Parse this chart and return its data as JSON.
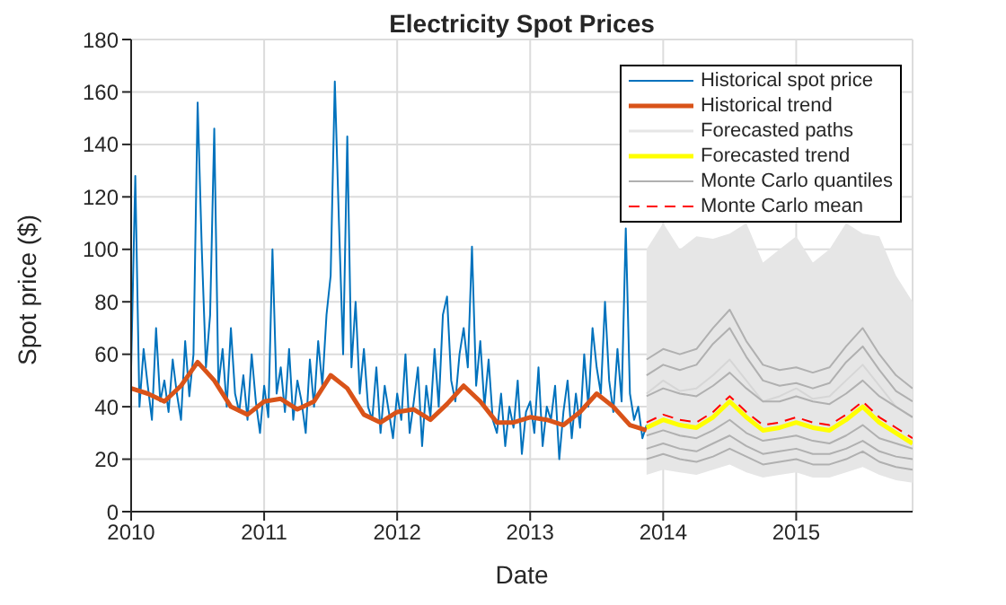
{
  "chart_data": {
    "type": "line",
    "title": "Electricity Spot Prices",
    "xlabel": "Date",
    "ylabel": "Spot price ($)",
    "xlim": [
      2010,
      2015.875
    ],
    "xticks": [
      2010,
      2011,
      2012,
      2013,
      2014,
      2015
    ],
    "ylim": [
      0,
      180
    ],
    "yticks": [
      0,
      20,
      40,
      60,
      80,
      100,
      120,
      140,
      160,
      180
    ],
    "grid": true,
    "legend": "top right",
    "marker": "none",
    "series": [
      {
        "name": "Historical spot price",
        "color": "#0072bd",
        "line_style": "solid",
        "x": [
          2010,
          2010.03125,
          2010.0625,
          2010.09375,
          2010.125,
          2010.15625,
          2010.1875,
          2010.21875,
          2010.25,
          2010.28125,
          2010.3125,
          2010.34375,
          2010.375,
          2010.40625,
          2010.4375,
          2010.46875,
          2010.5,
          2010.53125,
          2010.5625,
          2010.59375,
          2010.625,
          2010.65625,
          2010.6875,
          2010.71875,
          2010.75,
          2010.78125,
          2010.8125,
          2010.84375,
          2010.875,
          2010.90625,
          2010.9375,
          2010.96875,
          2011,
          2011.03125,
          2011.0625,
          2011.09375,
          2011.125,
          2011.15625,
          2011.1875,
          2011.21875,
          2011.25,
          2011.28125,
          2011.3125,
          2011.34375,
          2011.375,
          2011.40625,
          2011.4375,
          2011.46875,
          2011.5,
          2011.53125,
          2011.5625,
          2011.59375,
          2011.625,
          2011.65625,
          2011.6875,
          2011.71875,
          2011.75,
          2011.78125,
          2011.8125,
          2011.84375,
          2011.875,
          2011.90625,
          2011.9375,
          2011.96875,
          2012,
          2012.03125,
          2012.0625,
          2012.09375,
          2012.125,
          2012.15625,
          2012.1875,
          2012.21875,
          2012.25,
          2012.28125,
          2012.3125,
          2012.34375,
          2012.375,
          2012.40625,
          2012.4375,
          2012.46875,
          2012.5,
          2012.53125,
          2012.5625,
          2012.59375,
          2012.625,
          2012.65625,
          2012.6875,
          2012.71875,
          2012.75,
          2012.78125,
          2012.8125,
          2012.84375,
          2012.875,
          2012.90625,
          2012.9375,
          2012.96875,
          2013,
          2013.03125,
          2013.0625,
          2013.09375,
          2013.125,
          2013.15625,
          2013.1875,
          2013.21875,
          2013.25,
          2013.28125,
          2013.3125,
          2013.34375,
          2013.375,
          2013.40625,
          2013.4375,
          2013.46875,
          2013.5,
          2013.53125,
          2013.5625,
          2013.59375,
          2013.625,
          2013.65625,
          2013.6875,
          2013.71875,
          2013.75,
          2013.78125,
          2013.8125,
          2013.84375,
          2013.875
        ],
        "values": [
          55,
          128,
          40,
          62,
          48,
          35,
          70,
          42,
          50,
          38,
          58,
          45,
          35,
          65,
          44,
          60,
          156,
          100,
          55,
          75,
          146,
          48,
          62,
          40,
          70,
          45,
          38,
          52,
          35,
          60,
          42,
          30,
          48,
          36,
          100,
          45,
          55,
          38,
          62,
          35,
          50,
          42,
          30,
          58,
          40,
          65,
          48,
          75,
          90,
          164,
          110,
          60,
          143,
          55,
          80,
          45,
          62,
          40,
          35,
          55,
          30,
          48,
          38,
          28,
          45,
          35,
          60,
          30,
          42,
          55,
          25,
          48,
          36,
          62,
          40,
          75,
          82,
          50,
          42,
          60,
          70,
          55,
          101,
          48,
          65,
          40,
          58,
          35,
          30,
          45,
          25,
          40,
          32,
          50,
          22,
          38,
          42,
          30,
          55,
          25,
          40,
          35,
          48,
          20,
          38,
          50,
          28,
          45,
          32,
          60,
          40,
          70,
          55,
          45,
          80,
          50,
          38,
          62,
          42,
          108,
          45,
          35,
          40,
          28,
          33
        ]
      },
      {
        "name": "Historical trend",
        "color": "#d95319",
        "line_style": "solid",
        "x": [
          2010,
          2010.125,
          2010.25,
          2010.375,
          2010.5,
          2010.625,
          2010.75,
          2010.875,
          2011,
          2011.125,
          2011.25,
          2011.375,
          2011.5,
          2011.625,
          2011.75,
          2011.875,
          2012,
          2012.125,
          2012.25,
          2012.375,
          2012.5,
          2012.625,
          2012.75,
          2012.875,
          2013,
          2013.125,
          2013.25,
          2013.375,
          2013.5,
          2013.625,
          2013.75,
          2013.875
        ],
        "values": [
          47,
          45,
          42,
          48,
          57,
          50,
          40,
          37,
          42,
          43,
          39,
          42,
          52,
          47,
          37,
          34,
          38,
          39,
          35,
          41,
          48,
          42,
          34,
          34,
          36,
          35,
          33,
          38,
          45,
          40,
          33,
          31
        ]
      },
      {
        "name": "Forecasted paths",
        "color": "#e6e6e6",
        "x": [
          2013.875,
          2014,
          2014.125,
          2014.25,
          2014.375,
          2014.5,
          2014.625,
          2014.75,
          2014.875,
          2015,
          2015.125,
          2015.25,
          2015.375,
          2015.5,
          2015.625,
          2015.75,
          2015.875
        ],
        "lower": [
          14,
          16,
          15,
          14,
          16,
          18,
          15,
          13,
          14,
          15,
          13,
          13,
          15,
          17,
          14,
          12,
          11
        ],
        "upper": [
          100,
          110,
          100,
          105,
          104,
          106,
          110,
          95,
          100,
          105,
          95,
          100,
          110,
          106,
          105,
          90,
          80
        ],
        "values": [
          45,
          50,
          46,
          47,
          52,
          58,
          50,
          42,
          44,
          47,
          43,
          44,
          50,
          56,
          48,
          40,
          36
        ]
      },
      {
        "name": "Forecasted trend",
        "color": "#ffff00",
        "line_style": "solid",
        "x": [
          2013.875,
          2014,
          2014.125,
          2014.25,
          2014.375,
          2014.5,
          2014.625,
          2014.75,
          2014.875,
          2015,
          2015.125,
          2015.25,
          2015.375,
          2015.5,
          2015.625,
          2015.75,
          2015.875
        ],
        "values": [
          32,
          35,
          33,
          32,
          36,
          42,
          36,
          31,
          32,
          34,
          32,
          31,
          35,
          40,
          34,
          30,
          26
        ]
      },
      {
        "name": "Monte Carlo quantiles",
        "color": "#b0b0b0",
        "line_style": "solid",
        "x": [
          2013.875,
          2014,
          2014.125,
          2014.25,
          2014.375,
          2014.5,
          2014.625,
          2014.75,
          2014.875,
          2015,
          2015.125,
          2015.25,
          2015.375,
          2015.5,
          2015.625,
          2015.75,
          2015.875
        ],
        "values": [
          58,
          62,
          60,
          62,
          70,
          77,
          65,
          56,
          54,
          55,
          53,
          55,
          63,
          70,
          60,
          52,
          47
        ]
      },
      {
        "color": "#b0b0b0",
        "line_style": "solid",
        "x": [
          2013.875,
          2014,
          2014.125,
          2014.25,
          2014.375,
          2014.5,
          2014.625,
          2014.75,
          2014.875,
          2015,
          2015.125,
          2015.25,
          2015.375,
          2015.5,
          2015.625,
          2015.75,
          2015.875
        ],
        "values": [
          52,
          56,
          54,
          56,
          64,
          70,
          59,
          50,
          48,
          49,
          47,
          49,
          57,
          63,
          54,
          46,
          42
        ]
      },
      {
        "color": "#b0b0b0",
        "line_style": "solid",
        "x": [
          2013.875,
          2014,
          2014.125,
          2014.25,
          2014.375,
          2014.5,
          2014.625,
          2014.75,
          2014.875,
          2015,
          2015.125,
          2015.25,
          2015.375,
          2015.5,
          2015.625,
          2015.75,
          2015.875
        ],
        "values": [
          44,
          47,
          45,
          44,
          48,
          53,
          47,
          42,
          42,
          44,
          42,
          41,
          45,
          50,
          44,
          40,
          36
        ]
      },
      {
        "color": "#b0b0b0",
        "line_style": "solid",
        "x": [
          2013.875,
          2014,
          2014.125,
          2014.25,
          2014.375,
          2014.5,
          2014.625,
          2014.75,
          2014.875,
          2015,
          2015.125,
          2015.25,
          2015.375,
          2015.5,
          2015.625,
          2015.75,
          2015.875
        ],
        "values": [
          29,
          31,
          29,
          28,
          31,
          35,
          30,
          27,
          28,
          29,
          27,
          26,
          29,
          33,
          28,
          26,
          24
        ]
      },
      {
        "color": "#b0b0b0",
        "line_style": "solid",
        "x": [
          2013.875,
          2014,
          2014.125,
          2014.25,
          2014.375,
          2014.5,
          2014.625,
          2014.75,
          2014.875,
          2015,
          2015.125,
          2015.25,
          2015.375,
          2015.5,
          2015.625,
          2015.75,
          2015.875
        ],
        "values": [
          24,
          26,
          24,
          23,
          26,
          29,
          25,
          22,
          23,
          24,
          22,
          22,
          24,
          27,
          23,
          21,
          20
        ]
      },
      {
        "color": "#b0b0b0",
        "line_style": "solid",
        "x": [
          2013.875,
          2014,
          2014.125,
          2014.25,
          2014.375,
          2014.5,
          2014.625,
          2014.75,
          2014.875,
          2015,
          2015.125,
          2015.25,
          2015.375,
          2015.5,
          2015.625,
          2015.75,
          2015.875
        ],
        "values": [
          20,
          22,
          20,
          19,
          21,
          24,
          21,
          18,
          19,
          20,
          18,
          18,
          20,
          23,
          19,
          17,
          16
        ]
      },
      {
        "name": "Monte Carlo mean",
        "color": "#ff0000",
        "line_style": "dashed",
        "x": [
          2013.875,
          2014,
          2014.125,
          2014.25,
          2014.375,
          2014.5,
          2014.625,
          2014.75,
          2014.875,
          2015,
          2015.125,
          2015.25,
          2015.375,
          2015.5,
          2015.625,
          2015.75,
          2015.875
        ],
        "values": [
          34,
          37,
          35,
          34,
          38,
          44,
          38,
          33,
          34,
          36,
          34,
          33,
          37,
          42,
          36,
          32,
          28
        ]
      }
    ]
  }
}
